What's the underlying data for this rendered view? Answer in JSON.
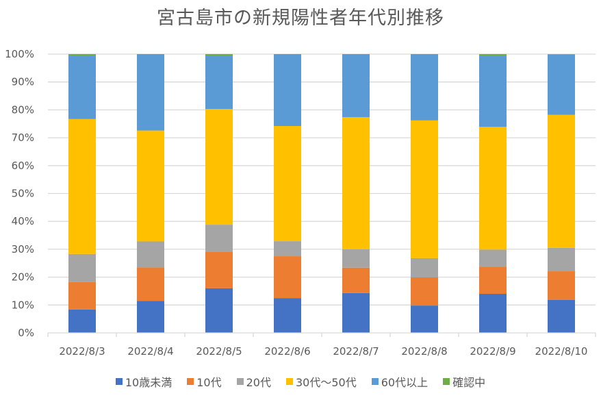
{
  "chart_data": {
    "type": "bar",
    "stacked": "percent",
    "title": "宮古島市の新規陽性者年代別推移",
    "xlabel": "",
    "ylabel": "",
    "ylim": [
      0,
      100
    ],
    "ytick_labels": [
      "0%",
      "10%",
      "20%",
      "30%",
      "40%",
      "50%",
      "60%",
      "70%",
      "80%",
      "90%",
      "100%"
    ],
    "grid": true,
    "legend_position": "bottom",
    "categories": [
      "2022/8/3",
      "2022/8/4",
      "2022/8/5",
      "2022/8/6",
      "2022/8/7",
      "2022/8/8",
      "2022/8/9",
      "2022/8/10"
    ],
    "series": [
      {
        "name": "10歳未満",
        "color": "#4472C4",
        "values": [
          8.4,
          11.5,
          16.0,
          12.5,
          14.3,
          9.8,
          14.0,
          11.8
        ]
      },
      {
        "name": "10代",
        "color": "#ED7D31",
        "values": [
          9.8,
          12.0,
          13.0,
          15.0,
          9.1,
          10.1,
          9.8,
          10.3
        ]
      },
      {
        "name": "20代",
        "color": "#A5A5A5",
        "values": [
          10.1,
          9.3,
          9.8,
          5.4,
          6.6,
          6.9,
          6.1,
          8.4
        ]
      },
      {
        "name": "30代～50代",
        "color": "#FFC000",
        "values": [
          48.4,
          39.8,
          41.5,
          41.3,
          47.4,
          49.4,
          44.0,
          47.7
        ]
      },
      {
        "name": "60代以上",
        "color": "#5B9BD5",
        "values": [
          22.8,
          27.4,
          19.2,
          25.8,
          22.6,
          23.8,
          25.6,
          21.6
        ]
      },
      {
        "name": "確認中",
        "color": "#70AD47",
        "values": [
          0.5,
          0.0,
          0.5,
          0.0,
          0.0,
          0.0,
          0.5,
          0.2
        ]
      }
    ]
  }
}
